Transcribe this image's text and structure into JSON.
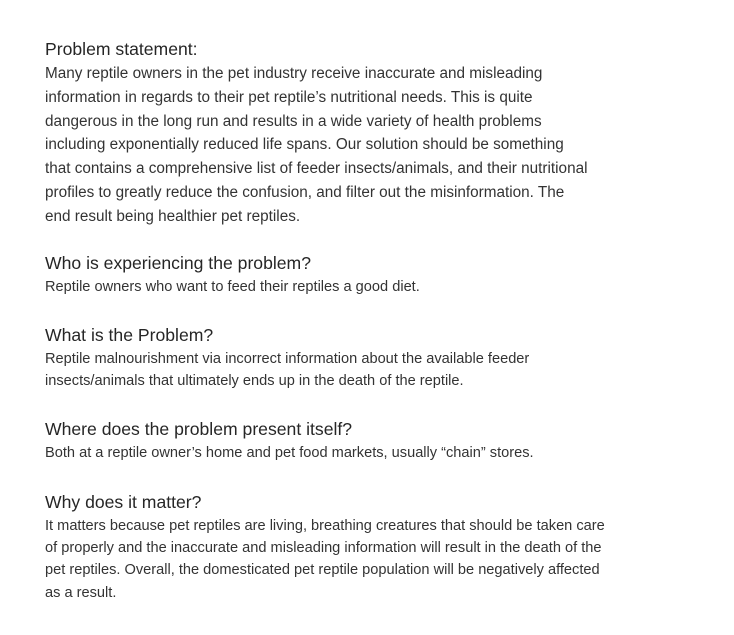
{
  "sections": [
    {
      "heading": "Problem statement:",
      "lines": [
        "Many reptile owners in the pet industry receive inaccurate and misleading",
        "information in regards to their pet reptile’s nutritional needs. This is quite",
        "dangerous in the long run and results in a wide variety of health problems",
        "including exponentially reduced life spans. Our solution should be something",
        "that contains a comprehensive list of feeder insects/animals, and their nutritional",
        "profiles to greatly reduce the confusion, and filter out the misinformation. The",
        "end result being healthier pet reptiles."
      ]
    },
    {
      "heading": "Who is experiencing the problem?",
      "lines": [
        "Reptile owners who want to feed their reptiles a good diet."
      ]
    },
    {
      "heading": "What is the Problem?",
      "lines": [
        "Reptile malnourishment via incorrect information about the available feeder",
        "insects/animals that ultimately ends up in the death of the reptile."
      ]
    },
    {
      "heading": "Where does the problem present itself?",
      "lines": [
        "Both at a reptile owner’s home and pet food markets, usually “chain” stores."
      ]
    },
    {
      "heading": "Why does it matter?",
      "lines": [
        "It matters because pet reptiles are living, breathing creatures that should be taken care",
        "of properly and the inaccurate and misleading information will result in the death of the",
        "pet reptiles. Overall, the domesticated pet reptile population will be negatively affected",
        "as a result."
      ]
    }
  ]
}
